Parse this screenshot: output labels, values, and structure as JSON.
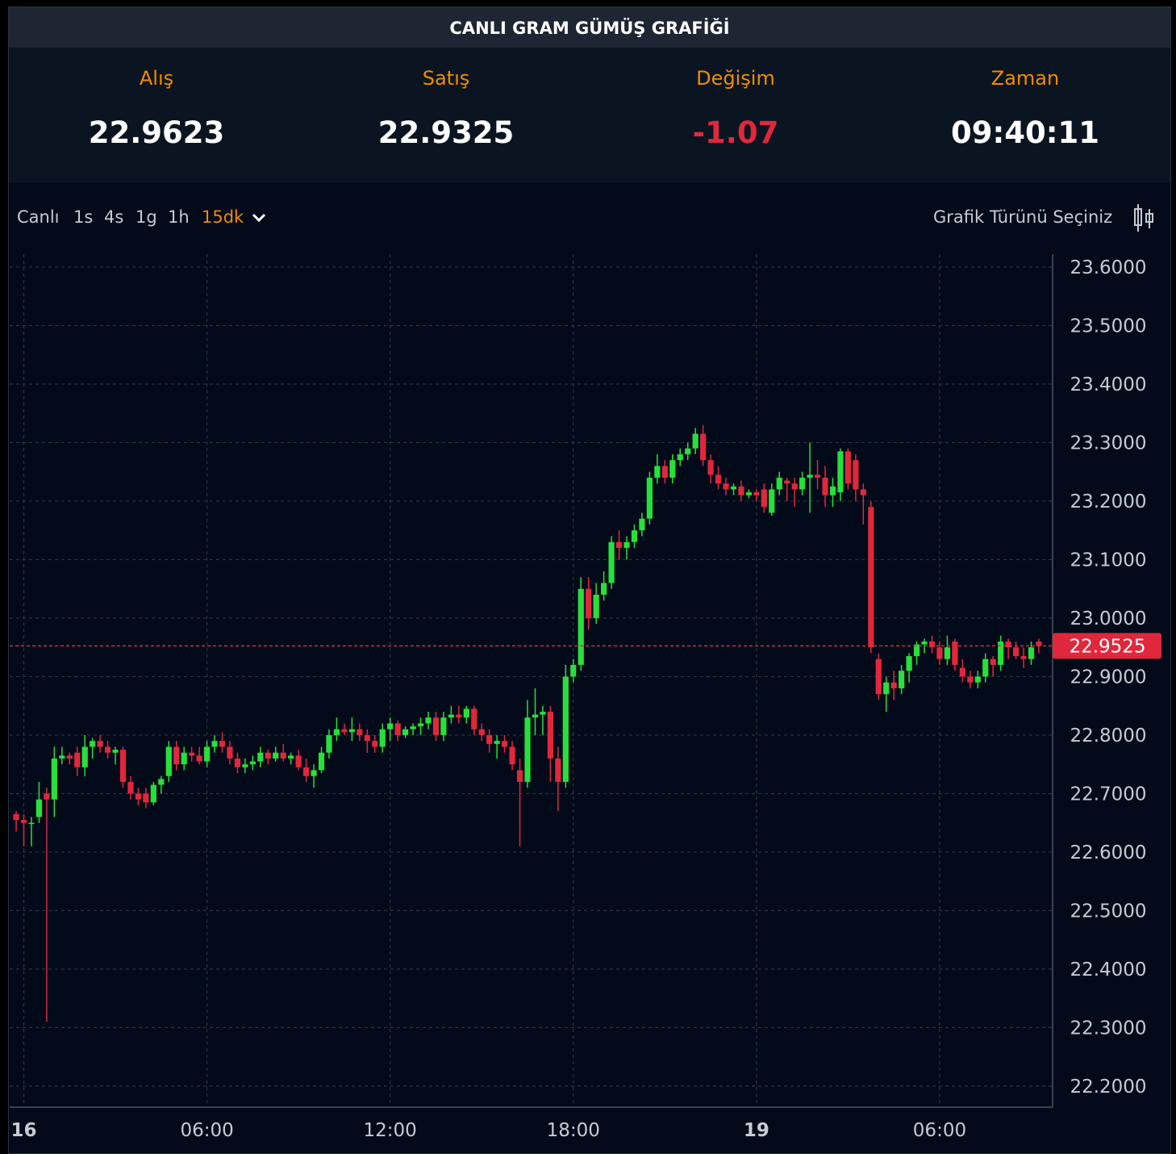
{
  "header": {
    "title": "CANLI GRAM GÜMÜŞ GRAFİĞİ"
  },
  "stats": [
    {
      "label": "Alış",
      "value": "22.9623"
    },
    {
      "label": "Satış",
      "value": "22.9325"
    },
    {
      "label": "Değişim",
      "value": "-1.07"
    },
    {
      "label": "Zaman",
      "value": "09:40:11"
    }
  ],
  "toolbar": {
    "ranges": [
      "Canlı",
      "1s",
      "4s",
      "1g",
      "1h"
    ],
    "active_range": "15dk",
    "chart_type_prompt": "Grafik Türünü Seçiniz"
  },
  "chart_data": {
    "type": "candlestick",
    "up_color": "#27e03a",
    "down_color": "#e0283c",
    "grid": true,
    "xlim": [
      -0.85,
      135.8
    ],
    "ylim": [
      22.164,
      23.622
    ],
    "xticks": [
      {
        "value": 1,
        "label": "16"
      },
      {
        "value": 25,
        "label": "06:00"
      },
      {
        "value": 49,
        "label": "12:00"
      },
      {
        "value": 73,
        "label": "18:00"
      },
      {
        "value": 97,
        "label": "19"
      },
      {
        "value": 121,
        "label": "06:00"
      }
    ],
    "yticks": [
      {
        "value": 23.6,
        "label": "23.6000"
      },
      {
        "value": 23.5,
        "label": "23.5000"
      },
      {
        "value": 23.4,
        "label": "23.4000"
      },
      {
        "value": 23.3,
        "label": "23.3000"
      },
      {
        "value": 23.2,
        "label": "23.2000"
      },
      {
        "value": 23.1,
        "label": "23.1000"
      },
      {
        "value": 23.0,
        "label": "23.0000"
      },
      {
        "value": 22.9,
        "label": "22.9000"
      },
      {
        "value": 22.8,
        "label": "22.8000"
      },
      {
        "value": 22.7,
        "label": "22.7000"
      },
      {
        "value": 22.6,
        "label": "22.6000"
      },
      {
        "value": 22.5,
        "label": "22.5000"
      },
      {
        "value": 22.4,
        "label": "22.4000"
      },
      {
        "value": 22.3,
        "label": "22.3000"
      },
      {
        "value": 22.2,
        "label": "22.2000"
      }
    ],
    "last_price": 22.9525,
    "candles": [
      [
        22.665,
        22.67,
        22.635,
        22.655
      ],
      [
        22.655,
        22.665,
        22.61,
        22.65
      ],
      [
        22.65,
        22.66,
        22.61,
        22.65
      ],
      [
        22.66,
        22.72,
        22.65,
        22.69
      ],
      [
        22.7,
        22.71,
        22.31,
        22.69
      ],
      [
        22.69,
        22.78,
        22.66,
        22.76
      ],
      [
        22.76,
        22.78,
        22.75,
        22.765
      ],
      [
        22.765,
        22.77,
        22.75,
        22.76
      ],
      [
        22.77,
        22.78,
        22.73,
        22.745
      ],
      [
        22.745,
        22.8,
        22.73,
        22.78
      ],
      [
        22.78,
        22.795,
        22.76,
        22.79
      ],
      [
        22.79,
        22.8,
        22.77,
        22.78
      ],
      [
        22.78,
        22.79,
        22.76,
        22.77
      ],
      [
        22.77,
        22.78,
        22.75,
        22.775
      ],
      [
        22.775,
        22.78,
        22.71,
        22.72
      ],
      [
        22.72,
        22.73,
        22.69,
        22.7
      ],
      [
        22.7,
        22.71,
        22.68,
        22.69
      ],
      [
        22.7,
        22.71,
        22.675,
        22.685
      ],
      [
        22.685,
        22.72,
        22.68,
        22.715
      ],
      [
        22.715,
        22.73,
        22.7,
        22.725
      ],
      [
        22.73,
        22.79,
        22.72,
        22.78
      ],
      [
        22.78,
        22.79,
        22.74,
        22.75
      ],
      [
        22.75,
        22.78,
        22.74,
        22.77
      ],
      [
        22.77,
        22.78,
        22.755,
        22.765
      ],
      [
        22.765,
        22.78,
        22.75,
        22.755
      ],
      [
        22.755,
        22.79,
        22.745,
        22.78
      ],
      [
        22.78,
        22.8,
        22.77,
        22.79
      ],
      [
        22.79,
        22.805,
        22.77,
        22.78
      ],
      [
        22.78,
        22.79,
        22.75,
        22.76
      ],
      [
        22.76,
        22.77,
        22.735,
        22.745
      ],
      [
        22.745,
        22.76,
        22.735,
        22.75
      ],
      [
        22.75,
        22.765,
        22.74,
        22.755
      ],
      [
        22.755,
        22.78,
        22.745,
        22.77
      ],
      [
        22.77,
        22.775,
        22.75,
        22.76
      ],
      [
        22.76,
        22.78,
        22.755,
        22.77
      ],
      [
        22.77,
        22.785,
        22.755,
        22.76
      ],
      [
        22.76,
        22.77,
        22.75,
        22.765
      ],
      [
        22.765,
        22.775,
        22.74,
        22.745
      ],
      [
        22.745,
        22.76,
        22.72,
        22.73
      ],
      [
        22.73,
        22.75,
        22.71,
        22.74
      ],
      [
        22.74,
        22.78,
        22.735,
        22.77
      ],
      [
        22.77,
        22.81,
        22.76,
        22.8
      ],
      [
        22.8,
        22.83,
        22.79,
        22.81
      ],
      [
        22.81,
        22.82,
        22.8,
        22.805
      ],
      [
        22.805,
        22.83,
        22.79,
        22.81
      ],
      [
        22.81,
        22.82,
        22.79,
        22.8
      ],
      [
        22.8,
        22.81,
        22.77,
        22.79
      ],
      [
        22.79,
        22.8,
        22.77,
        22.78
      ],
      [
        22.78,
        22.82,
        22.77,
        22.81
      ],
      [
        22.81,
        22.83,
        22.79,
        22.82
      ],
      [
        22.82,
        22.825,
        22.79,
        22.8
      ],
      [
        22.8,
        22.815,
        22.795,
        22.81
      ],
      [
        22.81,
        22.82,
        22.8,
        22.815
      ],
      [
        22.815,
        22.83,
        22.8,
        22.82
      ],
      [
        22.82,
        22.84,
        22.81,
        22.83
      ],
      [
        22.83,
        22.84,
        22.79,
        22.8
      ],
      [
        22.8,
        22.84,
        22.79,
        22.83
      ],
      [
        22.83,
        22.85,
        22.82,
        22.835
      ],
      [
        22.835,
        22.85,
        22.82,
        22.83
      ],
      [
        22.83,
        22.85,
        22.82,
        22.845
      ],
      [
        22.845,
        22.85,
        22.8,
        22.81
      ],
      [
        22.81,
        22.82,
        22.79,
        22.8
      ],
      [
        22.8,
        22.81,
        22.77,
        22.785
      ],
      [
        22.785,
        22.8,
        22.76,
        22.79
      ],
      [
        22.79,
        22.8,
        22.77,
        22.78
      ],
      [
        22.78,
        22.79,
        22.74,
        22.75
      ],
      [
        22.74,
        22.76,
        22.61,
        22.72
      ],
      [
        22.72,
        22.86,
        22.71,
        22.83
      ],
      [
        22.83,
        22.88,
        22.8,
        22.835
      ],
      [
        22.835,
        22.85,
        22.8,
        22.84
      ],
      [
        22.84,
        22.85,
        22.72,
        22.76
      ],
      [
        22.76,
        22.78,
        22.67,
        22.72
      ],
      [
        22.72,
        22.92,
        22.71,
        22.9
      ],
      [
        22.9,
        22.93,
        22.89,
        22.92
      ],
      [
        22.92,
        23.07,
        22.91,
        23.05
      ],
      [
        23.05,
        23.07,
        22.98,
        23.0
      ],
      [
        23.0,
        23.06,
        22.99,
        23.04
      ],
      [
        23.04,
        23.08,
        23.03,
        23.06
      ],
      [
        23.06,
        23.14,
        23.05,
        23.13
      ],
      [
        23.13,
        23.15,
        23.1,
        23.12
      ],
      [
        23.12,
        23.14,
        23.1,
        23.13
      ],
      [
        23.13,
        23.16,
        23.12,
        23.15
      ],
      [
        23.15,
        23.18,
        23.14,
        23.17
      ],
      [
        23.17,
        23.25,
        23.16,
        23.24
      ],
      [
        23.24,
        23.28,
        23.23,
        23.26
      ],
      [
        23.26,
        23.27,
        23.23,
        23.24
      ],
      [
        23.24,
        23.28,
        23.23,
        23.27
      ],
      [
        23.27,
        23.29,
        23.26,
        23.28
      ],
      [
        23.28,
        23.3,
        23.27,
        23.29
      ],
      [
        23.29,
        23.325,
        23.28,
        23.315
      ],
      [
        23.315,
        23.33,
        23.26,
        23.27
      ],
      [
        23.27,
        23.28,
        23.23,
        23.245
      ],
      [
        23.245,
        23.26,
        23.22,
        23.23
      ],
      [
        23.23,
        23.24,
        23.21,
        23.22
      ],
      [
        23.22,
        23.23,
        23.21,
        23.225
      ],
      [
        23.225,
        23.235,
        23.2,
        23.21
      ],
      [
        23.21,
        23.22,
        23.205,
        23.215
      ],
      [
        23.215,
        23.22,
        23.2,
        23.21
      ],
      [
        23.22,
        23.23,
        23.18,
        23.19
      ],
      [
        23.18,
        23.23,
        23.175,
        23.22
      ],
      [
        23.22,
        23.25,
        23.21,
        23.24
      ],
      [
        23.235,
        23.24,
        23.2,
        23.23
      ],
      [
        23.23,
        23.24,
        23.19,
        23.22
      ],
      [
        23.22,
        23.25,
        23.21,
        23.24
      ],
      [
        23.24,
        23.3,
        23.18,
        23.245
      ],
      [
        23.245,
        23.27,
        23.22,
        23.24
      ],
      [
        23.24,
        23.26,
        23.19,
        23.21
      ],
      [
        23.21,
        23.24,
        23.19,
        23.225
      ],
      [
        23.215,
        23.29,
        23.2,
        23.285
      ],
      [
        23.285,
        23.29,
        23.22,
        23.23
      ],
      [
        23.27,
        23.28,
        23.2,
        23.22
      ],
      [
        23.22,
        23.23,
        23.16,
        23.21
      ],
      [
        23.19,
        23.2,
        22.94,
        22.95
      ],
      [
        22.93,
        22.94,
        22.86,
        22.87
      ],
      [
        22.87,
        22.9,
        22.84,
        22.89
      ],
      [
        22.89,
        22.91,
        22.86,
        22.88
      ],
      [
        22.88,
        22.92,
        22.87,
        22.91
      ],
      [
        22.91,
        22.94,
        22.89,
        22.935
      ],
      [
        22.935,
        22.96,
        22.92,
        22.955
      ],
      [
        22.955,
        22.965,
        22.94,
        22.96
      ],
      [
        22.96,
        22.97,
        22.94,
        22.95
      ],
      [
        22.95,
        22.96,
        22.92,
        22.93
      ],
      [
        22.93,
        22.97,
        22.92,
        22.95
      ],
      [
        22.96,
        22.965,
        22.91,
        22.92
      ],
      [
        22.915,
        22.93,
        22.89,
        22.9
      ],
      [
        22.9,
        22.91,
        22.88,
        22.89
      ],
      [
        22.89,
        22.91,
        22.88,
        22.9
      ],
      [
        22.9,
        22.94,
        22.89,
        22.93
      ],
      [
        22.93,
        22.935,
        22.9,
        22.92
      ],
      [
        22.92,
        22.97,
        22.91,
        22.96
      ],
      [
        22.96,
        22.965,
        22.93,
        22.95
      ],
      [
        22.95,
        22.96,
        22.93,
        22.935
      ],
      [
        22.935,
        22.95,
        22.915,
        22.93
      ],
      [
        22.93,
        22.96,
        22.92,
        22.95
      ],
      [
        22.96,
        22.965,
        22.94,
        22.9525
      ]
    ]
  }
}
